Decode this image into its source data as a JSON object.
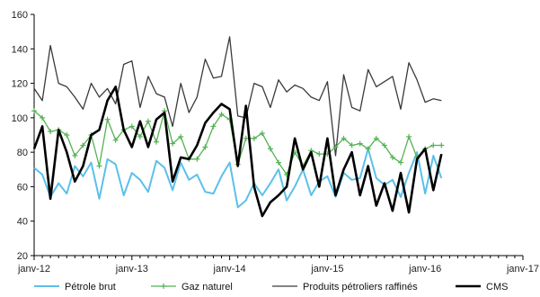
{
  "chart_data": {
    "type": "line",
    "title": "",
    "xlabel": "",
    "ylabel": "",
    "ylim": [
      20,
      160
    ],
    "yticks": [
      20,
      40,
      60,
      80,
      100,
      120,
      140,
      160
    ],
    "xlim": [
      "janv-12",
      "janv-17"
    ],
    "xtick_labels": [
      "janv-12",
      "janv-13",
      "janv-14",
      "janv-15",
      "janv-16",
      "janv-17"
    ],
    "grid": false,
    "legend_position": "bottom",
    "x": [
      "janv-12",
      "févr-12",
      "mars-12",
      "avr-12",
      "mai-12",
      "juin-12",
      "juil-12",
      "août-12",
      "sept-12",
      "oct-12",
      "nov-12",
      "déc-12",
      "janv-13",
      "févr-13",
      "mars-13",
      "avr-13",
      "mai-13",
      "juin-13",
      "juil-13",
      "août-13",
      "sept-13",
      "oct-13",
      "nov-13",
      "déc-13",
      "janv-14",
      "févr-14",
      "mars-14",
      "avr-14",
      "mai-14",
      "juin-14",
      "juil-14",
      "août-14",
      "sept-14",
      "oct-14",
      "nov-14",
      "déc-14",
      "janv-15",
      "févr-15",
      "mars-15",
      "avr-15",
      "mai-15",
      "juin-15",
      "juil-15",
      "août-15",
      "sept-15",
      "oct-15",
      "nov-15",
      "déc-15",
      "janv-16",
      "févr-16",
      "mars-16"
    ],
    "series": [
      {
        "name": "Pétrole brut",
        "color": "#5bc0eb",
        "width": 2,
        "marker": "none",
        "values": [
          71,
          67,
          54,
          62,
          56,
          72,
          66,
          74,
          53,
          76,
          73,
          55,
          68,
          64,
          57,
          75,
          71,
          58,
          74,
          64,
          67,
          57,
          56,
          66,
          74,
          48,
          52,
          62,
          55,
          62,
          70,
          52,
          60,
          70,
          55,
          63,
          66,
          54,
          68,
          64,
          65,
          82,
          65,
          61,
          64,
          54,
          68,
          80,
          56,
          78,
          65
        ]
      },
      {
        "name": "Gaz naturel",
        "color": "#55b255",
        "width": 1.3,
        "marker": "plus",
        "values": [
          104,
          100,
          92,
          93,
          90,
          78,
          84,
          90,
          72,
          99,
          87,
          93,
          95,
          89,
          98,
          86,
          104,
          85,
          89,
          76,
          76,
          83,
          95,
          102,
          99,
          73,
          88,
          88,
          91,
          82,
          74,
          67,
          80,
          72,
          81,
          79,
          79,
          83,
          88,
          84,
          85,
          82,
          88,
          84,
          77,
          74,
          89,
          77,
          82,
          84,
          84
        ]
      },
      {
        "name": "Produits pétroliers raffinés",
        "color": "#3a3a3a",
        "width": 1.3,
        "marker": "none",
        "values": [
          117,
          110,
          142,
          120,
          118,
          112,
          105,
          120,
          112,
          117,
          108,
          131,
          133,
          106,
          124,
          114,
          112,
          95,
          120,
          103,
          112,
          134,
          123,
          124,
          147,
          101,
          100,
          120,
          118,
          106,
          122,
          115,
          119,
          117,
          112,
          110,
          121,
          78,
          125,
          106,
          104,
          128,
          118,
          121,
          124,
          105,
          132,
          122,
          109,
          111,
          110
        ]
      },
      {
        "name": "CMS",
        "color": "#000000",
        "width": 2.6,
        "marker": "none",
        "values": [
          82,
          95,
          53,
          93,
          80,
          63,
          72,
          90,
          93,
          110,
          118,
          93,
          83,
          98,
          83,
          99,
          103,
          63,
          77,
          76,
          84,
          97,
          103,
          108,
          105,
          72,
          107,
          60,
          43,
          51,
          55,
          60,
          88,
          70,
          80,
          60,
          88,
          55,
          70,
          80,
          55,
          72,
          49,
          62,
          46,
          68,
          45,
          76,
          82,
          58,
          79
        ]
      }
    ]
  }
}
